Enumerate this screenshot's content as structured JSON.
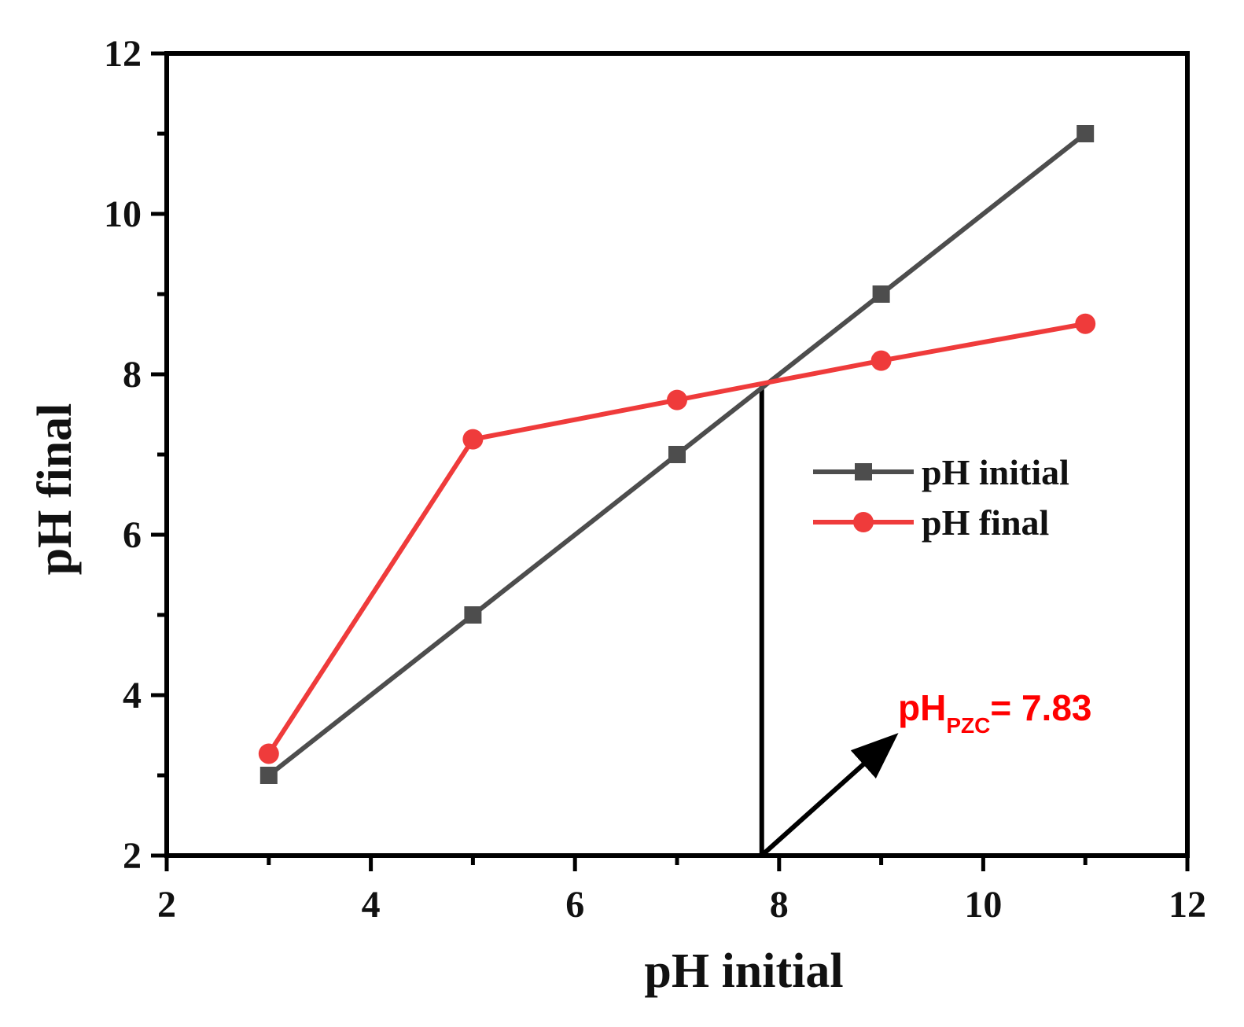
{
  "chart_data": {
    "type": "line",
    "xlabel": "pH initial",
    "ylabel": "pH final",
    "xlim": [
      2,
      12
    ],
    "ylim": [
      2,
      12
    ],
    "x_ticks": [
      2,
      4,
      6,
      8,
      10,
      12
    ],
    "y_ticks": [
      2,
      4,
      6,
      8,
      10,
      12
    ],
    "x": [
      3,
      5,
      7,
      9,
      11
    ],
    "series": [
      {
        "name": "pH initial",
        "marker": "square",
        "color": "#4d4d4d",
        "values": [
          3,
          5,
          7,
          9,
          11
        ]
      },
      {
        "name": "pH final",
        "marker": "circle",
        "color": "#ef3b3b",
        "values": [
          3.27,
          7.19,
          7.68,
          8.17,
          8.63
        ]
      }
    ],
    "legend_position": "center-right",
    "annotation": {
      "prefix": "pH",
      "subscript": "PZC",
      "suffix": "= 7.83",
      "value": 7.83,
      "color": "#ff0000"
    },
    "intersection": {
      "x": 7.83,
      "y": 7.9
    }
  }
}
